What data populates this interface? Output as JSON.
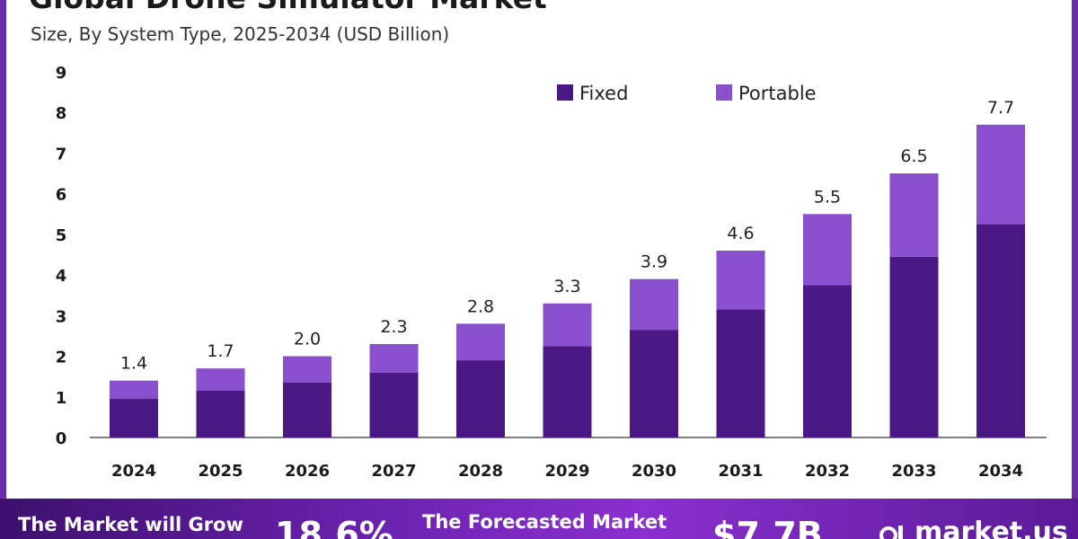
{
  "header": {
    "title": "Global Drone Simulator Market",
    "subtitle": "Size, By System Type, 2025-2034 (USD Billion)"
  },
  "chart_data": {
    "type": "bar",
    "stacked": true,
    "categories": [
      "2024",
      "2025",
      "2026",
      "2027",
      "2028",
      "2029",
      "2030",
      "2031",
      "2032",
      "2033",
      "2034"
    ],
    "series": [
      {
        "name": "Fixed",
        "values": [
          0.95,
          1.15,
          1.35,
          1.6,
          1.9,
          2.25,
          2.65,
          3.15,
          3.75,
          4.45,
          5.25
        ]
      },
      {
        "name": "Portable",
        "values": [
          0.45,
          0.55,
          0.65,
          0.7,
          0.9,
          1.05,
          1.25,
          1.45,
          1.75,
          2.05,
          2.45
        ]
      }
    ],
    "totals_labels": [
      "1.4",
      "1.7",
      "2.0",
      "2.3",
      "2.8",
      "3.3",
      "3.9",
      "4.6",
      "5.5",
      "6.5",
      "7.7"
    ],
    "yticks": [
      "0",
      "1",
      "2",
      "3",
      "4",
      "5",
      "6",
      "7",
      "8",
      "9"
    ],
    "ylim": [
      0,
      9
    ],
    "legend_position": "top",
    "grid": false,
    "colors": {
      "Fixed": "#4a1785",
      "Portable": "#8a4fcc",
      "axis": "#555555"
    }
  },
  "banner": {
    "grow_text": "The Market will Grow",
    "cagr": "18.6%",
    "forecast_text": "The Forecasted Market",
    "forecast_value": "$7.7B",
    "brand": "market.us"
  }
}
